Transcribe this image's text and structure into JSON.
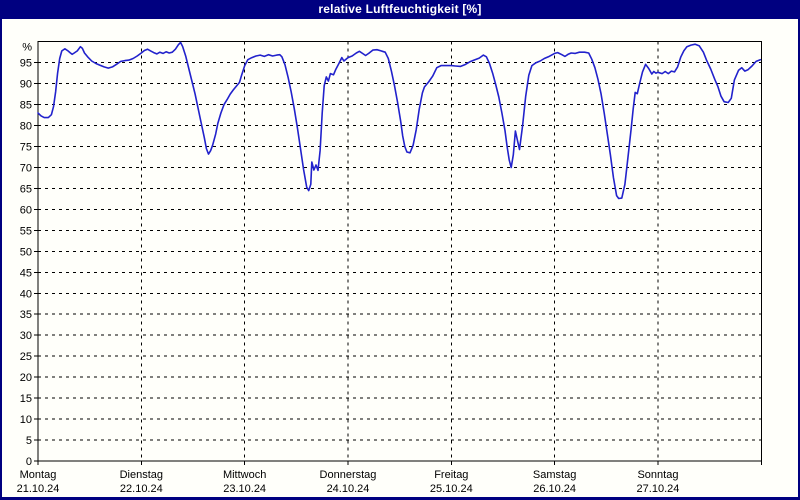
{
  "window": {
    "title": "relative Luftfeuchtigkeit [%]"
  },
  "colors": {
    "frame": "#000080",
    "title_text": "#ffffff",
    "plot_background": "#fffffa",
    "plot_border": "#000000",
    "gridline": "#000000",
    "line": "#2222cc",
    "axis_text": "#000000"
  },
  "chart_data": {
    "type": "line",
    "title": "relative Luftfeuchtigkeit [%]",
    "ylabel": "%",
    "y_unit_label": "%",
    "ylim": [
      0,
      100
    ],
    "y_ticks": [
      0,
      5,
      10,
      15,
      20,
      25,
      30,
      35,
      40,
      45,
      50,
      55,
      60,
      65,
      70,
      75,
      80,
      85,
      90,
      95
    ],
    "grid": "dashed, horizontal every 5 units, vertical at each day boundary",
    "legend_position": "none",
    "x_axis": {
      "unit": "days",
      "days": [
        {
          "label": "Montag",
          "date": "21.10.24"
        },
        {
          "label": "Dienstag",
          "date": "22.10.24"
        },
        {
          "label": "Mittwoch",
          "date": "23.10.24"
        },
        {
          "label": "Donnerstag",
          "date": "24.10.24"
        },
        {
          "label": "Freitag",
          "date": "25.10.24"
        },
        {
          "label": "Samstag",
          "date": "26.10.24"
        },
        {
          "label": "Sonntag",
          "date": "27.10.24"
        }
      ]
    },
    "series": [
      {
        "name": "relative Luftfeuchtigkeit [%]",
        "color": "#2222cc",
        "x_unit": "days_from_start_of_Montag_21_10_24",
        "points": [
          [
            0.0,
            83.0
          ],
          [
            0.03,
            82.3
          ],
          [
            0.06,
            81.9
          ],
          [
            0.1,
            81.9
          ],
          [
            0.13,
            82.6
          ],
          [
            0.15,
            84.5
          ],
          [
            0.17,
            88.0
          ],
          [
            0.19,
            92.5
          ],
          [
            0.21,
            96.0
          ],
          [
            0.23,
            97.8
          ],
          [
            0.26,
            98.3
          ],
          [
            0.29,
            97.8
          ],
          [
            0.31,
            97.4
          ],
          [
            0.33,
            97.0
          ],
          [
            0.35,
            97.3
          ],
          [
            0.38,
            97.8
          ],
          [
            0.41,
            98.8
          ],
          [
            0.43,
            98.4
          ],
          [
            0.45,
            97.3
          ],
          [
            0.48,
            96.4
          ],
          [
            0.52,
            95.4
          ],
          [
            0.56,
            94.8
          ],
          [
            0.6,
            94.4
          ],
          [
            0.64,
            94.0
          ],
          [
            0.68,
            93.7
          ],
          [
            0.72,
            94.0
          ],
          [
            0.76,
            94.6
          ],
          [
            0.8,
            95.3
          ],
          [
            0.84,
            95.5
          ],
          [
            0.88,
            95.6
          ],
          [
            0.92,
            96.0
          ],
          [
            0.96,
            96.6
          ],
          [
            1.0,
            97.3
          ],
          [
            1.03,
            97.9
          ],
          [
            1.06,
            98.2
          ],
          [
            1.09,
            97.8
          ],
          [
            1.12,
            97.4
          ],
          [
            1.15,
            97.1
          ],
          [
            1.18,
            97.5
          ],
          [
            1.21,
            97.2
          ],
          [
            1.24,
            97.6
          ],
          [
            1.27,
            97.3
          ],
          [
            1.3,
            97.5
          ],
          [
            1.33,
            98.2
          ],
          [
            1.36,
            99.3
          ],
          [
            1.38,
            99.8
          ],
          [
            1.4,
            98.8
          ],
          [
            1.43,
            96.5
          ],
          [
            1.46,
            93.5
          ],
          [
            1.49,
            90.5
          ],
          [
            1.52,
            87.5
          ],
          [
            1.55,
            84.0
          ],
          [
            1.58,
            80.5
          ],
          [
            1.61,
            77.0
          ],
          [
            1.63,
            74.5
          ],
          [
            1.65,
            73.2
          ],
          [
            1.67,
            74.0
          ],
          [
            1.69,
            75.3
          ],
          [
            1.72,
            78.0
          ],
          [
            1.74,
            80.5
          ],
          [
            1.77,
            83.0
          ],
          [
            1.8,
            85.0
          ],
          [
            1.83,
            86.2
          ],
          [
            1.86,
            87.5
          ],
          [
            1.89,
            88.5
          ],
          [
            1.92,
            89.4
          ],
          [
            1.95,
            90.3
          ],
          [
            1.97,
            92.0
          ],
          [
            2.0,
            94.3
          ],
          [
            2.03,
            95.7
          ],
          [
            2.07,
            96.2
          ],
          [
            2.11,
            96.6
          ],
          [
            2.15,
            96.8
          ],
          [
            2.19,
            96.5
          ],
          [
            2.23,
            96.9
          ],
          [
            2.27,
            96.6
          ],
          [
            2.31,
            96.8
          ],
          [
            2.34,
            96.9
          ],
          [
            2.36,
            96.4
          ],
          [
            2.39,
            94.5
          ],
          [
            2.42,
            91.5
          ],
          [
            2.45,
            88.0
          ],
          [
            2.48,
            84.0
          ],
          [
            2.51,
            79.5
          ],
          [
            2.54,
            74.5
          ],
          [
            2.57,
            69.5
          ],
          [
            2.6,
            65.3
          ],
          [
            2.62,
            64.5
          ],
          [
            2.64,
            66.0
          ],
          [
            2.65,
            71.3
          ],
          [
            2.67,
            69.4
          ],
          [
            2.69,
            70.6
          ],
          [
            2.71,
            69.3
          ],
          [
            2.73,
            74.0
          ],
          [
            2.75,
            83.0
          ],
          [
            2.77,
            89.5
          ],
          [
            2.79,
            91.6
          ],
          [
            2.81,
            90.6
          ],
          [
            2.83,
            92.4
          ],
          [
            2.86,
            92.1
          ],
          [
            2.88,
            93.3
          ],
          [
            2.91,
            94.7
          ],
          [
            2.94,
            96.2
          ],
          [
            2.96,
            95.4
          ],
          [
            3.0,
            96.2
          ],
          [
            3.04,
            96.6
          ],
          [
            3.08,
            97.3
          ],
          [
            3.11,
            97.7
          ],
          [
            3.14,
            97.2
          ],
          [
            3.17,
            96.7
          ],
          [
            3.2,
            97.2
          ],
          [
            3.24,
            98.0
          ],
          [
            3.28,
            98.1
          ],
          [
            3.32,
            97.8
          ],
          [
            3.36,
            97.5
          ],
          [
            3.39,
            96.0
          ],
          [
            3.42,
            93.0
          ],
          [
            3.45,
            89.5
          ],
          [
            3.48,
            85.5
          ],
          [
            3.51,
            81.0
          ],
          [
            3.53,
            77.5
          ],
          [
            3.55,
            75.0
          ],
          [
            3.57,
            73.7
          ],
          [
            3.6,
            73.5
          ],
          [
            3.63,
            75.3
          ],
          [
            3.66,
            79.0
          ],
          [
            3.69,
            84.0
          ],
          [
            3.72,
            87.8
          ],
          [
            3.74,
            89.2
          ],
          [
            3.78,
            90.4
          ],
          [
            3.82,
            91.8
          ],
          [
            3.86,
            93.8
          ],
          [
            3.9,
            94.3
          ],
          [
            3.94,
            94.3
          ],
          [
            4.0,
            94.3
          ],
          [
            4.04,
            94.2
          ],
          [
            4.09,
            94.1
          ],
          [
            4.13,
            94.5
          ],
          [
            4.18,
            95.2
          ],
          [
            4.22,
            95.6
          ],
          [
            4.27,
            96.1
          ],
          [
            4.31,
            96.8
          ],
          [
            4.34,
            96.4
          ],
          [
            4.37,
            94.8
          ],
          [
            4.4,
            92.5
          ],
          [
            4.43,
            89.8
          ],
          [
            4.46,
            86.8
          ],
          [
            4.49,
            83.0
          ],
          [
            4.52,
            78.8
          ],
          [
            4.54,
            75.0
          ],
          [
            4.56,
            71.8
          ],
          [
            4.58,
            70.0
          ],
          [
            4.6,
            73.0
          ],
          [
            4.62,
            78.7
          ],
          [
            4.64,
            76.5
          ],
          [
            4.66,
            74.3
          ],
          [
            4.69,
            80.0
          ],
          [
            4.72,
            87.0
          ],
          [
            4.75,
            92.0
          ],
          [
            4.78,
            94.3
          ],
          [
            4.82,
            95.0
          ],
          [
            4.86,
            95.4
          ],
          [
            4.9,
            96.0
          ],
          [
            4.94,
            96.4
          ],
          [
            5.0,
            97.2
          ],
          [
            5.03,
            97.4
          ],
          [
            5.07,
            96.9
          ],
          [
            5.1,
            96.5
          ],
          [
            5.13,
            97.0
          ],
          [
            5.16,
            97.3
          ],
          [
            5.2,
            97.2
          ],
          [
            5.24,
            97.5
          ],
          [
            5.29,
            97.5
          ],
          [
            5.33,
            97.3
          ],
          [
            5.36,
            95.8
          ],
          [
            5.39,
            93.8
          ],
          [
            5.42,
            91.0
          ],
          [
            5.45,
            87.5
          ],
          [
            5.48,
            83.0
          ],
          [
            5.51,
            78.0
          ],
          [
            5.54,
            73.0
          ],
          [
            5.57,
            67.5
          ],
          [
            5.6,
            63.3
          ],
          [
            5.62,
            62.6
          ],
          [
            5.65,
            62.7
          ],
          [
            5.68,
            66.0
          ],
          [
            5.71,
            72.5
          ],
          [
            5.74,
            79.1
          ],
          [
            5.76,
            84.0
          ],
          [
            5.78,
            87.9
          ],
          [
            5.8,
            87.6
          ],
          [
            5.82,
            89.8
          ],
          [
            5.85,
            92.8
          ],
          [
            5.88,
            94.6
          ],
          [
            5.91,
            93.6
          ],
          [
            5.94,
            92.3
          ],
          [
            5.96,
            92.9
          ],
          [
            5.98,
            92.5
          ],
          [
            6.0,
            92.7
          ],
          [
            6.04,
            92.4
          ],
          [
            6.07,
            92.9
          ],
          [
            6.1,
            92.4
          ],
          [
            6.13,
            93.0
          ],
          [
            6.16,
            92.8
          ],
          [
            6.19,
            94.0
          ],
          [
            6.22,
            96.3
          ],
          [
            6.25,
            97.8
          ],
          [
            6.28,
            98.8
          ],
          [
            6.32,
            99.2
          ],
          [
            6.36,
            99.4
          ],
          [
            6.4,
            99.0
          ],
          [
            6.44,
            97.5
          ],
          [
            6.47,
            95.6
          ],
          [
            6.51,
            93.5
          ],
          [
            6.55,
            91.0
          ],
          [
            6.58,
            89.3
          ],
          [
            6.61,
            87.0
          ],
          [
            6.64,
            85.7
          ],
          [
            6.68,
            85.5
          ],
          [
            6.71,
            86.5
          ],
          [
            6.74,
            90.9
          ],
          [
            6.78,
            93.2
          ],
          [
            6.81,
            93.8
          ],
          [
            6.84,
            93.0
          ],
          [
            6.87,
            93.3
          ],
          [
            6.91,
            94.2
          ],
          [
            6.95,
            95.3
          ],
          [
            6.99,
            95.7
          ]
        ]
      }
    ]
  }
}
